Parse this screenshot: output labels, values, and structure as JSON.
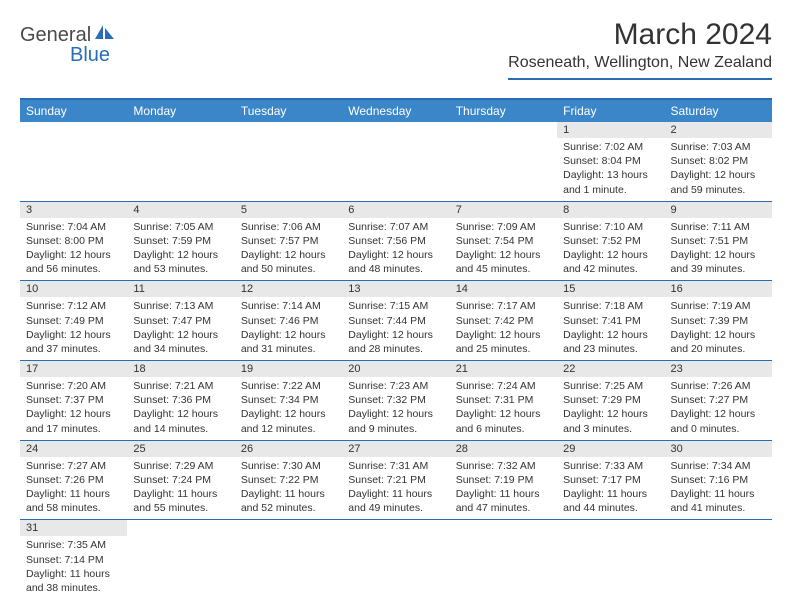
{
  "logo": {
    "text_gray": "General",
    "text_blue": "Blue"
  },
  "title": "March 2024",
  "location": "Roseneath, Wellington, New Zealand",
  "day_headers": [
    "Sunday",
    "Monday",
    "Tuesday",
    "Wednesday",
    "Thursday",
    "Friday",
    "Saturday"
  ],
  "colors": {
    "header_bg": "#3b86c8",
    "rule": "#2a6db5",
    "daynum_bg": "#e8e8e8"
  },
  "weeks": [
    [
      {
        "n": "",
        "sunrise": "",
        "sunset": "",
        "daylight": ""
      },
      {
        "n": "",
        "sunrise": "",
        "sunset": "",
        "daylight": ""
      },
      {
        "n": "",
        "sunrise": "",
        "sunset": "",
        "daylight": ""
      },
      {
        "n": "",
        "sunrise": "",
        "sunset": "",
        "daylight": ""
      },
      {
        "n": "",
        "sunrise": "",
        "sunset": "",
        "daylight": ""
      },
      {
        "n": "1",
        "sunrise": "Sunrise: 7:02 AM",
        "sunset": "Sunset: 8:04 PM",
        "daylight": "Daylight: 13 hours and 1 minute."
      },
      {
        "n": "2",
        "sunrise": "Sunrise: 7:03 AM",
        "sunset": "Sunset: 8:02 PM",
        "daylight": "Daylight: 12 hours and 59 minutes."
      }
    ],
    [
      {
        "n": "3",
        "sunrise": "Sunrise: 7:04 AM",
        "sunset": "Sunset: 8:00 PM",
        "daylight": "Daylight: 12 hours and 56 minutes."
      },
      {
        "n": "4",
        "sunrise": "Sunrise: 7:05 AM",
        "sunset": "Sunset: 7:59 PM",
        "daylight": "Daylight: 12 hours and 53 minutes."
      },
      {
        "n": "5",
        "sunrise": "Sunrise: 7:06 AM",
        "sunset": "Sunset: 7:57 PM",
        "daylight": "Daylight: 12 hours and 50 minutes."
      },
      {
        "n": "6",
        "sunrise": "Sunrise: 7:07 AM",
        "sunset": "Sunset: 7:56 PM",
        "daylight": "Daylight: 12 hours and 48 minutes."
      },
      {
        "n": "7",
        "sunrise": "Sunrise: 7:09 AM",
        "sunset": "Sunset: 7:54 PM",
        "daylight": "Daylight: 12 hours and 45 minutes."
      },
      {
        "n": "8",
        "sunrise": "Sunrise: 7:10 AM",
        "sunset": "Sunset: 7:52 PM",
        "daylight": "Daylight: 12 hours and 42 minutes."
      },
      {
        "n": "9",
        "sunrise": "Sunrise: 7:11 AM",
        "sunset": "Sunset: 7:51 PM",
        "daylight": "Daylight: 12 hours and 39 minutes."
      }
    ],
    [
      {
        "n": "10",
        "sunrise": "Sunrise: 7:12 AM",
        "sunset": "Sunset: 7:49 PM",
        "daylight": "Daylight: 12 hours and 37 minutes."
      },
      {
        "n": "11",
        "sunrise": "Sunrise: 7:13 AM",
        "sunset": "Sunset: 7:47 PM",
        "daylight": "Daylight: 12 hours and 34 minutes."
      },
      {
        "n": "12",
        "sunrise": "Sunrise: 7:14 AM",
        "sunset": "Sunset: 7:46 PM",
        "daylight": "Daylight: 12 hours and 31 minutes."
      },
      {
        "n": "13",
        "sunrise": "Sunrise: 7:15 AM",
        "sunset": "Sunset: 7:44 PM",
        "daylight": "Daylight: 12 hours and 28 minutes."
      },
      {
        "n": "14",
        "sunrise": "Sunrise: 7:17 AM",
        "sunset": "Sunset: 7:42 PM",
        "daylight": "Daylight: 12 hours and 25 minutes."
      },
      {
        "n": "15",
        "sunrise": "Sunrise: 7:18 AM",
        "sunset": "Sunset: 7:41 PM",
        "daylight": "Daylight: 12 hours and 23 minutes."
      },
      {
        "n": "16",
        "sunrise": "Sunrise: 7:19 AM",
        "sunset": "Sunset: 7:39 PM",
        "daylight": "Daylight: 12 hours and 20 minutes."
      }
    ],
    [
      {
        "n": "17",
        "sunrise": "Sunrise: 7:20 AM",
        "sunset": "Sunset: 7:37 PM",
        "daylight": "Daylight: 12 hours and 17 minutes."
      },
      {
        "n": "18",
        "sunrise": "Sunrise: 7:21 AM",
        "sunset": "Sunset: 7:36 PM",
        "daylight": "Daylight: 12 hours and 14 minutes."
      },
      {
        "n": "19",
        "sunrise": "Sunrise: 7:22 AM",
        "sunset": "Sunset: 7:34 PM",
        "daylight": "Daylight: 12 hours and 12 minutes."
      },
      {
        "n": "20",
        "sunrise": "Sunrise: 7:23 AM",
        "sunset": "Sunset: 7:32 PM",
        "daylight": "Daylight: 12 hours and 9 minutes."
      },
      {
        "n": "21",
        "sunrise": "Sunrise: 7:24 AM",
        "sunset": "Sunset: 7:31 PM",
        "daylight": "Daylight: 12 hours and 6 minutes."
      },
      {
        "n": "22",
        "sunrise": "Sunrise: 7:25 AM",
        "sunset": "Sunset: 7:29 PM",
        "daylight": "Daylight: 12 hours and 3 minutes."
      },
      {
        "n": "23",
        "sunrise": "Sunrise: 7:26 AM",
        "sunset": "Sunset: 7:27 PM",
        "daylight": "Daylight: 12 hours and 0 minutes."
      }
    ],
    [
      {
        "n": "24",
        "sunrise": "Sunrise: 7:27 AM",
        "sunset": "Sunset: 7:26 PM",
        "daylight": "Daylight: 11 hours and 58 minutes."
      },
      {
        "n": "25",
        "sunrise": "Sunrise: 7:29 AM",
        "sunset": "Sunset: 7:24 PM",
        "daylight": "Daylight: 11 hours and 55 minutes."
      },
      {
        "n": "26",
        "sunrise": "Sunrise: 7:30 AM",
        "sunset": "Sunset: 7:22 PM",
        "daylight": "Daylight: 11 hours and 52 minutes."
      },
      {
        "n": "27",
        "sunrise": "Sunrise: 7:31 AM",
        "sunset": "Sunset: 7:21 PM",
        "daylight": "Daylight: 11 hours and 49 minutes."
      },
      {
        "n": "28",
        "sunrise": "Sunrise: 7:32 AM",
        "sunset": "Sunset: 7:19 PM",
        "daylight": "Daylight: 11 hours and 47 minutes."
      },
      {
        "n": "29",
        "sunrise": "Sunrise: 7:33 AM",
        "sunset": "Sunset: 7:17 PM",
        "daylight": "Daylight: 11 hours and 44 minutes."
      },
      {
        "n": "30",
        "sunrise": "Sunrise: 7:34 AM",
        "sunset": "Sunset: 7:16 PM",
        "daylight": "Daylight: 11 hours and 41 minutes."
      }
    ],
    [
      {
        "n": "31",
        "sunrise": "Sunrise: 7:35 AM",
        "sunset": "Sunset: 7:14 PM",
        "daylight": "Daylight: 11 hours and 38 minutes."
      },
      {
        "n": "",
        "sunrise": "",
        "sunset": "",
        "daylight": ""
      },
      {
        "n": "",
        "sunrise": "",
        "sunset": "",
        "daylight": ""
      },
      {
        "n": "",
        "sunrise": "",
        "sunset": "",
        "daylight": ""
      },
      {
        "n": "",
        "sunrise": "",
        "sunset": "",
        "daylight": ""
      },
      {
        "n": "",
        "sunrise": "",
        "sunset": "",
        "daylight": ""
      },
      {
        "n": "",
        "sunrise": "",
        "sunset": "",
        "daylight": ""
      }
    ]
  ]
}
